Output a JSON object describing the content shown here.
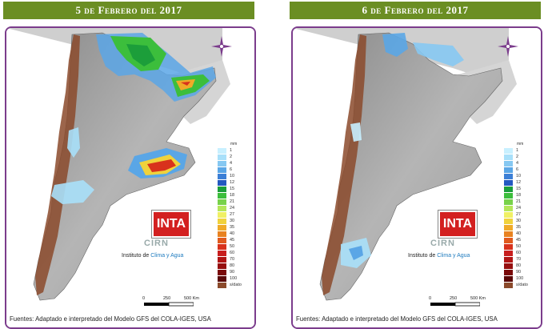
{
  "maps": [
    {
      "title": "5 de Febrero del 2017",
      "logo_text": "INTA",
      "brand": "CIRN",
      "institute_prefix": "Instituto de ",
      "institute_highlight": "Clima y Agua",
      "scale_labels": [
        "0",
        "250",
        "500 Km"
      ],
      "footer": "Fuentes: Adaptado e interpretado del Modelo GFS del COLA-IGES, USA"
    },
    {
      "title": "6 de Febrero del 2017",
      "logo_text": "INTA",
      "brand": "CIRN",
      "institute_prefix": "Instituto de ",
      "institute_highlight": "Clima y Agua",
      "scale_labels": [
        "0",
        "250",
        "500 Km"
      ],
      "footer": "Fuentes: Adaptado e interpretado del Modelo GFS del COLA-IGES, USA"
    }
  ],
  "legend": {
    "unit": "mm",
    "levels": [
      {
        "label": "1",
        "color": "#c8f0ff"
      },
      {
        "label": "2",
        "color": "#a8e0fa"
      },
      {
        "label": "4",
        "color": "#86c8f2"
      },
      {
        "label": "6",
        "color": "#5aa6e6"
      },
      {
        "label": "10",
        "color": "#3c7fd6"
      },
      {
        "label": "12",
        "color": "#2358c0"
      },
      {
        "label": "15",
        "color": "#1c9e3a"
      },
      {
        "label": "18",
        "color": "#3cbe3c"
      },
      {
        "label": "21",
        "color": "#78d24a"
      },
      {
        "label": "24",
        "color": "#b4e65a"
      },
      {
        "label": "27",
        "color": "#f0f064"
      },
      {
        "label": "30",
        "color": "#f0d23c"
      },
      {
        "label": "35",
        "color": "#f0aa28"
      },
      {
        "label": "40",
        "color": "#e88220"
      },
      {
        "label": "45",
        "color": "#e05a1e"
      },
      {
        "label": "50",
        "color": "#d8321c"
      },
      {
        "label": "60",
        "color": "#c81e1e"
      },
      {
        "label": "70",
        "color": "#b01414"
      },
      {
        "label": "80",
        "color": "#960f0f"
      },
      {
        "label": "90",
        "color": "#7a0a0a"
      },
      {
        "label": "100",
        "color": "#5a0808"
      },
      {
        "label": "",
        "color": "#8b4a2b"
      }
    ],
    "last_label": "s/dato"
  }
}
